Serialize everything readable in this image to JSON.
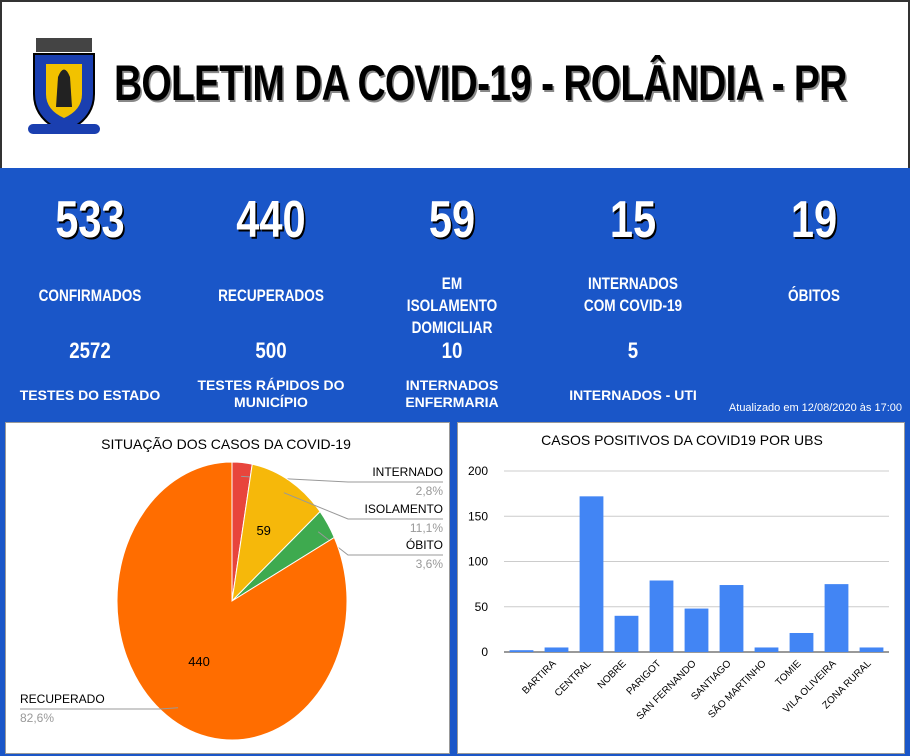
{
  "header": {
    "title": "BOLETIM DA COVID-19 - ROLÂNDIA - PR"
  },
  "stats": [
    {
      "value": "533",
      "label": "CONFIRMADOS"
    },
    {
      "value": "440",
      "label": "RECUPERADOS"
    },
    {
      "value": "59",
      "label": "EM ISOLAMENTO DOMICILIAR"
    },
    {
      "value": "15",
      "label": "INTERNADOS COM COVID-19"
    },
    {
      "value": "19",
      "label": "ÓBITOS"
    }
  ],
  "substats": [
    {
      "value": "2572",
      "label": "TESTES DO ESTADO"
    },
    {
      "value": "500",
      "label": "TESTES RÁPIDOS DO MUNICÍPIO"
    },
    {
      "value": "10",
      "label": "INTERNADOS ENFERMARIA"
    },
    {
      "value": "5",
      "label": "INTERNADOS - UTI"
    }
  ],
  "updated": "Atualizado em 12/08/2020 às 17:00",
  "chart_data": [
    {
      "type": "pie",
      "title": "SITUAÇÃO DOS CASOS DA COVID-19",
      "categories": [
        "INTERNADO",
        "ISOLAMENTO",
        "ÓBITO",
        "RECUPERADO"
      ],
      "values": [
        15,
        59,
        19,
        440
      ],
      "percents": [
        2.8,
        11.1,
        3.6,
        82.6
      ],
      "percent_labels": [
        "2,8%",
        "11,1%",
        "3,6%",
        "82,6%"
      ],
      "colors": [
        "#e8453c",
        "#f6b80a",
        "#3eaa4f",
        "#ff6d00"
      ]
    },
    {
      "type": "bar",
      "title": "CASOS POSITIVOS DA COVID19 POR UBS",
      "categories": [
        null,
        "BARTIRA",
        "CENTRAL",
        "NOBRE",
        "PARIGOT",
        "SAN FERNANDO",
        "SANTIAGO",
        "SÃO MARTINHO",
        "TOMIE",
        "VILA OLIVEIRA",
        "ZONA RURAL"
      ],
      "values": [
        2,
        5,
        172,
        40,
        79,
        48,
        74,
        5,
        21,
        75,
        5
      ],
      "color": "#4285f4",
      "ylim": [
        0,
        200
      ],
      "yticks": [
        0,
        50,
        100,
        150,
        200
      ],
      "grid": true
    }
  ]
}
